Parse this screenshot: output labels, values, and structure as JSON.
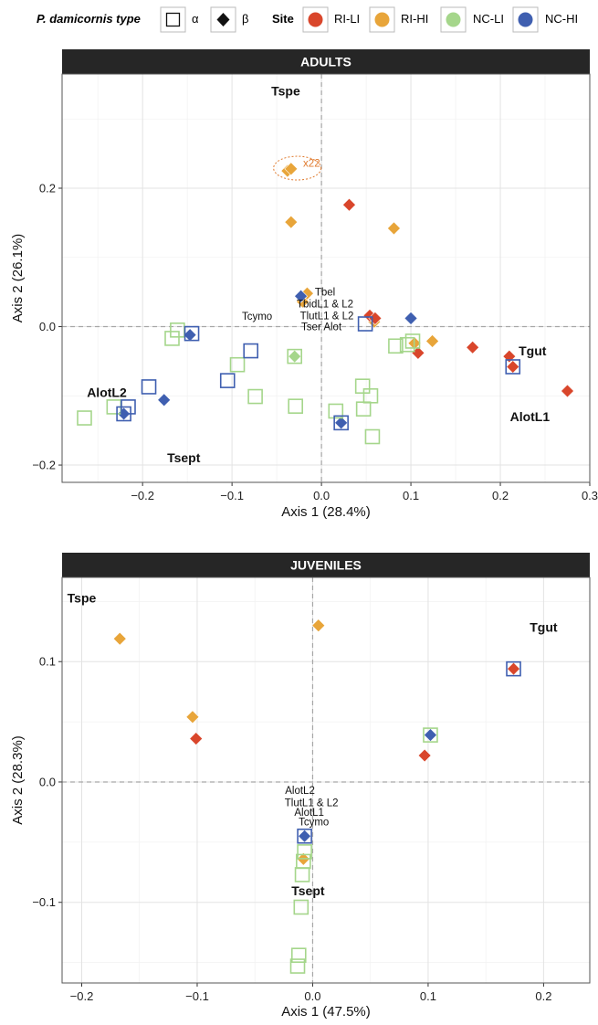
{
  "legend": {
    "type_title": "P. damicornis type",
    "types": [
      {
        "label": "α",
        "shape": "square-open"
      },
      {
        "label": "β",
        "shape": "diamond-filled"
      }
    ],
    "site_title": "Site",
    "sites": [
      {
        "label": "RI-LI",
        "color": "#d9462b"
      },
      {
        "label": "RI-HI",
        "color": "#e8a53a"
      },
      {
        "label": "NC-LI",
        "color": "#a5d68b"
      },
      {
        "label": "NC-HI",
        "color": "#3f5fb0"
      }
    ]
  },
  "chart_data": [
    {
      "type": "scatter",
      "title": "ADULTS",
      "xlabel": "Axis 1 (28.4%)",
      "ylabel": "Axis 2 (26.1%)",
      "xlim": [
        -0.29,
        0.3
      ],
      "ylim": [
        -0.225,
        0.365
      ],
      "xticks": [
        -0.2,
        -0.1,
        0.0,
        0.1,
        0.2,
        0.3
      ],
      "xtick_labels": [
        "−0.2",
        "−0.1",
        "0.0",
        "0.1",
        "0.2",
        "0.3"
      ],
      "yticks": [
        -0.2,
        0.0,
        0.2
      ],
      "ytick_labels": [
        "−0.2",
        "0.0",
        "0.2"
      ],
      "grid": true,
      "points": [
        {
          "x": -0.038,
          "y": 0.225,
          "type": "β",
          "site": "RI-HI"
        },
        {
          "x": -0.034,
          "y": 0.228,
          "type": "β",
          "site": "RI-HI"
        },
        {
          "x": -0.034,
          "y": 0.151,
          "type": "β",
          "site": "RI-HI"
        },
        {
          "x": 0.081,
          "y": 0.142,
          "type": "β",
          "site": "RI-HI"
        },
        {
          "x": -0.016,
          "y": 0.048,
          "type": "β",
          "site": "RI-HI"
        },
        {
          "x": -0.021,
          "y": 0.036,
          "type": "β",
          "site": "RI-HI"
        },
        {
          "x": 0.059,
          "y": 0.007,
          "type": "β",
          "site": "RI-HI"
        },
        {
          "x": 0.124,
          "y": -0.021,
          "type": "β",
          "site": "RI-HI"
        },
        {
          "x": 0.104,
          "y": -0.024,
          "type": "β",
          "site": "RI-HI"
        },
        {
          "x": 0.031,
          "y": 0.176,
          "type": "β",
          "site": "RI-LI"
        },
        {
          "x": 0.054,
          "y": 0.016,
          "type": "β",
          "site": "RI-LI"
        },
        {
          "x": 0.06,
          "y": 0.012,
          "type": "β",
          "site": "RI-LI"
        },
        {
          "x": 0.108,
          "y": -0.038,
          "type": "β",
          "site": "RI-LI"
        },
        {
          "x": 0.169,
          "y": -0.03,
          "type": "β",
          "site": "RI-LI"
        },
        {
          "x": 0.21,
          "y": -0.043,
          "type": "β",
          "site": "RI-LI"
        },
        {
          "x": 0.214,
          "y": -0.058,
          "type": "β",
          "site": "RI-LI"
        },
        {
          "x": 0.275,
          "y": -0.093,
          "type": "β",
          "site": "RI-LI"
        },
        {
          "x": -0.023,
          "y": 0.044,
          "type": "β",
          "site": "NC-HI"
        },
        {
          "x": 0.1,
          "y": 0.012,
          "type": "β",
          "site": "NC-HI"
        },
        {
          "x": -0.147,
          "y": -0.012,
          "type": "β",
          "site": "NC-HI"
        },
        {
          "x": -0.176,
          "y": -0.106,
          "type": "β",
          "site": "NC-HI"
        },
        {
          "x": -0.221,
          "y": -0.126,
          "type": "β",
          "site": "NC-HI"
        },
        {
          "x": 0.022,
          "y": -0.139,
          "type": "β",
          "site": "NC-HI"
        },
        {
          "x": -0.03,
          "y": -0.043,
          "type": "β",
          "site": "NC-LI"
        },
        {
          "x": -0.161,
          "y": -0.005,
          "type": "α",
          "site": "NC-LI"
        },
        {
          "x": -0.167,
          "y": -0.017,
          "type": "α",
          "site": "NC-LI"
        },
        {
          "x": -0.094,
          "y": -0.055,
          "type": "α",
          "site": "NC-LI"
        },
        {
          "x": -0.074,
          "y": -0.101,
          "type": "α",
          "site": "NC-LI"
        },
        {
          "x": -0.03,
          "y": -0.043,
          "type": "α",
          "site": "NC-LI"
        },
        {
          "x": -0.029,
          "y": -0.115,
          "type": "α",
          "site": "NC-LI"
        },
        {
          "x": -0.232,
          "y": -0.116,
          "type": "α",
          "site": "NC-LI"
        },
        {
          "x": -0.265,
          "y": -0.132,
          "type": "α",
          "site": "NC-LI"
        },
        {
          "x": 0.016,
          "y": -0.122,
          "type": "α",
          "site": "NC-LI"
        },
        {
          "x": 0.046,
          "y": -0.086,
          "type": "α",
          "site": "NC-LI"
        },
        {
          "x": 0.055,
          "y": -0.1,
          "type": "α",
          "site": "NC-LI"
        },
        {
          "x": 0.047,
          "y": -0.119,
          "type": "α",
          "site": "NC-LI"
        },
        {
          "x": 0.057,
          "y": -0.159,
          "type": "α",
          "site": "NC-LI"
        },
        {
          "x": 0.083,
          "y": -0.028,
          "type": "α",
          "site": "NC-LI"
        },
        {
          "x": 0.096,
          "y": -0.026,
          "type": "α",
          "site": "NC-LI"
        },
        {
          "x": 0.102,
          "y": -0.021,
          "type": "α",
          "site": "NC-LI"
        },
        {
          "x": -0.145,
          "y": -0.01,
          "type": "α",
          "site": "NC-HI"
        },
        {
          "x": -0.079,
          "y": -0.035,
          "type": "α",
          "site": "NC-HI"
        },
        {
          "x": -0.105,
          "y": -0.078,
          "type": "α",
          "site": "NC-HI"
        },
        {
          "x": -0.193,
          "y": -0.087,
          "type": "α",
          "site": "NC-HI"
        },
        {
          "x": -0.216,
          "y": -0.116,
          "type": "α",
          "site": "NC-HI"
        },
        {
          "x": -0.221,
          "y": -0.126,
          "type": "α",
          "site": "NC-HI"
        },
        {
          "x": 0.022,
          "y": -0.139,
          "type": "α",
          "site": "NC-HI"
        },
        {
          "x": 0.049,
          "y": 0.004,
          "type": "α",
          "site": "NC-HI"
        },
        {
          "x": 0.214,
          "y": -0.058,
          "type": "α",
          "site": "NC-HI"
        }
      ],
      "annotations": [
        {
          "text": "Tspe",
          "x": -0.04,
          "y": 0.339,
          "bold": true
        },
        {
          "text": "x22",
          "x": -0.011,
          "y": 0.236,
          "bold": false,
          "color": "#e07a2e"
        },
        {
          "text": "Tbel",
          "x": 0.004,
          "y": 0.05,
          "bold": false
        },
        {
          "text": "TbidL1 & L2",
          "x": 0.004,
          "y": 0.033,
          "bold": false
        },
        {
          "text": "Tcymo",
          "x": -0.072,
          "y": 0.015,
          "bold": false
        },
        {
          "text": "TlutL1 & L2",
          "x": 0.006,
          "y": 0.016,
          "bold": false
        },
        {
          "text": "Tser Alot",
          "x": 0.0,
          "y": 0.0,
          "bold": false
        },
        {
          "text": "Tgut",
          "x": 0.236,
          "y": -0.036,
          "bold": true
        },
        {
          "text": "AlotL2",
          "x": -0.24,
          "y": -0.096,
          "bold": true
        },
        {
          "text": "AlotL1",
          "x": 0.233,
          "y": -0.131,
          "bold": true
        },
        {
          "text": "Tsept",
          "x": -0.154,
          "y": -0.191,
          "bold": true
        }
      ]
    },
    {
      "type": "scatter",
      "title": "JUVENILES",
      "xlabel": "Axis 1 (47.5%)",
      "ylabel": "Axis 2 (28.3%)",
      "xlim": [
        -0.217,
        0.24
      ],
      "ylim": [
        -0.167,
        0.17
      ],
      "xticks": [
        -0.2,
        -0.1,
        0.0,
        0.1,
        0.2
      ],
      "xtick_labels": [
        "−0.2",
        "−0.1",
        "0.0",
        "0.1",
        "0.2"
      ],
      "yticks": [
        -0.1,
        0.0,
        0.1
      ],
      "ytick_labels": [
        "−0.1",
        "0.0",
        "0.1"
      ],
      "grid": true,
      "points": [
        {
          "x": -0.167,
          "y": 0.119,
          "type": "β",
          "site": "RI-HI"
        },
        {
          "x": 0.005,
          "y": 0.13,
          "type": "β",
          "site": "RI-HI"
        },
        {
          "x": -0.104,
          "y": 0.054,
          "type": "β",
          "site": "RI-HI"
        },
        {
          "x": -0.008,
          "y": -0.064,
          "type": "β",
          "site": "RI-HI"
        },
        {
          "x": -0.101,
          "y": 0.036,
          "type": "β",
          "site": "RI-LI"
        },
        {
          "x": 0.097,
          "y": 0.022,
          "type": "β",
          "site": "RI-LI"
        },
        {
          "x": 0.174,
          "y": 0.094,
          "type": "β",
          "site": "RI-LI"
        },
        {
          "x": 0.102,
          "y": 0.039,
          "type": "β",
          "site": "NC-HI"
        },
        {
          "x": -0.007,
          "y": -0.045,
          "type": "β",
          "site": "NC-HI"
        },
        {
          "x": 0.174,
          "y": 0.094,
          "type": "α",
          "site": "NC-HI"
        },
        {
          "x": -0.007,
          "y": -0.045,
          "type": "α",
          "site": "NC-HI"
        },
        {
          "x": 0.102,
          "y": 0.039,
          "type": "α",
          "site": "NC-LI"
        },
        {
          "x": -0.007,
          "y": -0.058,
          "type": "α",
          "site": "NC-LI"
        },
        {
          "x": -0.008,
          "y": -0.066,
          "type": "α",
          "site": "NC-LI"
        },
        {
          "x": -0.009,
          "y": -0.077,
          "type": "α",
          "site": "NC-LI"
        },
        {
          "x": -0.01,
          "y": -0.104,
          "type": "α",
          "site": "NC-LI"
        },
        {
          "x": -0.012,
          "y": -0.144,
          "type": "α",
          "site": "NC-LI"
        },
        {
          "x": -0.013,
          "y": -0.153,
          "type": "α",
          "site": "NC-LI"
        }
      ],
      "annotations": [
        {
          "text": "Tspe",
          "x": -0.2,
          "y": 0.152,
          "bold": true
        },
        {
          "text": "Tgut",
          "x": 0.2,
          "y": 0.128,
          "bold": true
        },
        {
          "text": "AlotL2",
          "x": -0.011,
          "y": -0.007,
          "bold": false
        },
        {
          "text": "TlutL1 & L2",
          "x": -0.001,
          "y": -0.017,
          "bold": false
        },
        {
          "text": "AlotL1",
          "x": -0.003,
          "y": -0.025,
          "bold": false
        },
        {
          "text": "Tcymo",
          "x": 0.001,
          "y": -0.033,
          "bold": false
        },
        {
          "text": "Tsept",
          "x": -0.004,
          "y": -0.091,
          "bold": true
        }
      ]
    }
  ]
}
